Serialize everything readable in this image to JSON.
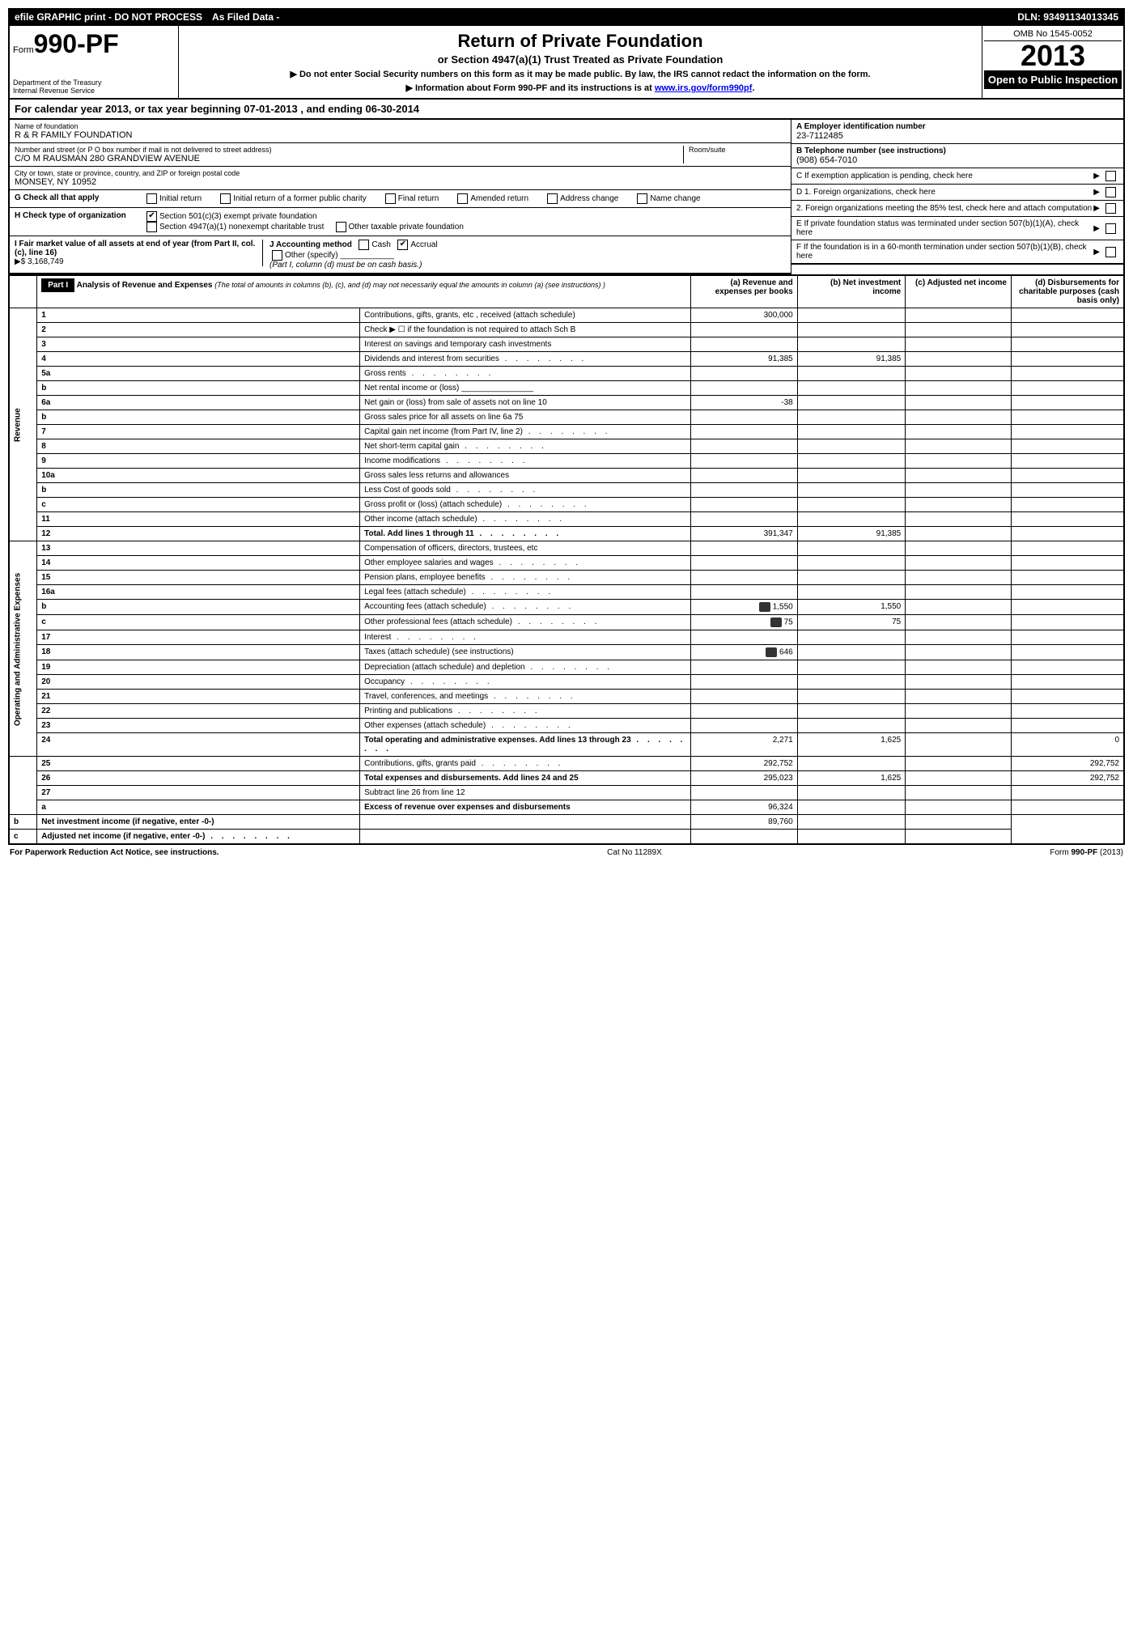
{
  "topbar": {
    "left": "efile GRAPHIC print - DO NOT PROCESS",
    "mid": "As Filed Data -",
    "dln_label": "DLN:",
    "dln": "93491134013345"
  },
  "header": {
    "form_prefix": "Form",
    "form_no": "990-PF",
    "dept1": "Department of the Treasury",
    "dept2": "Internal Revenue Service",
    "title": "Return of Private Foundation",
    "subtitle": "or Section 4947(a)(1) Trust Treated as Private Foundation",
    "instr1": "▶ Do not enter Social Security numbers on this form as it may be made public. By law, the IRS cannot redact the information on the form.",
    "instr2": "▶ Information about Form 990-PF and its instructions is at ",
    "instr2_link": "www.irs.gov/form990pf",
    "omb": "OMB No 1545-0052",
    "year": "2013",
    "open": "Open to Public Inspection"
  },
  "calendar": {
    "text_a": "For calendar year 2013, or tax year beginning ",
    "begin": "07-01-2013",
    "text_b": " , and ending ",
    "end": "06-30-2014"
  },
  "entity": {
    "name_label": "Name of foundation",
    "name": "R & R FAMILY FOUNDATION",
    "street_label": "Number and street (or P O box number if mail is not delivered to street address)",
    "room_label": "Room/suite",
    "street": "C/O M RAUSMAN 280 GRANDVIEW AVENUE",
    "city_label": "City or town, state or province, country, and ZIP or foreign postal code",
    "city": "MONSEY, NY 10952",
    "ein_label": "A Employer identification number",
    "ein": "23-7112485",
    "phone_label": "B Telephone number (see instructions)",
    "phone": "(908) 654-7010",
    "c_label": "C If exemption application is pending, check here"
  },
  "boxG": {
    "label": "G Check all that apply",
    "opts": [
      "Initial return",
      "Initial return of a former public charity",
      "Final return",
      "Amended return",
      "Address change",
      "Name change"
    ]
  },
  "boxH": {
    "label": "H Check type of organization",
    "opt1": "Section 501(c)(3) exempt private foundation",
    "opt2": "Section 4947(a)(1) nonexempt charitable trust",
    "opt3": "Other taxable private foundation",
    "opt1_checked": "✔"
  },
  "boxI": {
    "label": "I Fair market value of all assets at end of year (from Part II, col. (c), line 16)",
    "value": "▶$ 3,168,749"
  },
  "boxJ": {
    "label": "J Accounting method",
    "cash": "Cash",
    "accrual": "Accrual",
    "accrual_checked": "✔",
    "other": "Other (specify)",
    "note": "(Part I, column (d) must be on cash basis.)"
  },
  "boxD": {
    "d1": "D 1. Foreign organizations, check here",
    "d2": "2. Foreign organizations meeting the 85% test, check here and attach computation",
    "e": "E If private foundation status was terminated under section 507(b)(1)(A), check here",
    "f": "F If the foundation is in a 60-month termination under section 507(b)(1)(B), check here"
  },
  "part1": {
    "label": "Part I",
    "title": "Analysis of Revenue and Expenses",
    "title_note": "(The total of amounts in columns (b), (c), and (d) may not necessarily equal the amounts in column (a) (see instructions) )",
    "col_a": "(a) Revenue and expenses per books",
    "col_b": "(b) Net investment income",
    "col_c": "(c) Adjusted net income",
    "col_d": "(d) Disbursements for charitable purposes (cash basis only)"
  },
  "sections": {
    "revenue": "Revenue",
    "expenses": "Operating and Administrative Expenses"
  },
  "rows": [
    {
      "n": "1",
      "desc": "Contributions, gifts, grants, etc , received (attach schedule)",
      "a": "300,000"
    },
    {
      "n": "2",
      "desc": "Check ▶ ☐ if the foundation is not required to attach Sch B"
    },
    {
      "n": "3",
      "desc": "Interest on savings and temporary cash investments"
    },
    {
      "n": "4",
      "desc": "Dividends and interest from securities",
      "a": "91,385",
      "b": "91,385",
      "dots": true
    },
    {
      "n": "5a",
      "desc": "Gross rents",
      "dots": true
    },
    {
      "n": "b",
      "desc": "Net rental income or (loss) ________________"
    },
    {
      "n": "6a",
      "desc": "Net gain or (loss) from sale of assets not on line 10",
      "a": "-38"
    },
    {
      "n": "b",
      "desc": "Gross sales price for all assets on line 6a                75",
      "indent": true
    },
    {
      "n": "7",
      "desc": "Capital gain net income (from Part IV, line 2)",
      "dots": true
    },
    {
      "n": "8",
      "desc": "Net short-term capital gain",
      "dots": true
    },
    {
      "n": "9",
      "desc": "Income modifications",
      "dots": true
    },
    {
      "n": "10a",
      "desc": "Gross sales less returns and allowances"
    },
    {
      "n": "b",
      "desc": "Less Cost of goods sold",
      "dots": true
    },
    {
      "n": "c",
      "desc": "Gross profit or (loss) (attach schedule)",
      "dots": true
    },
    {
      "n": "11",
      "desc": "Other income (attach schedule)",
      "dots": true
    },
    {
      "n": "12",
      "desc": "Total. Add lines 1 through 11",
      "a": "391,347",
      "b": "91,385",
      "bold": true,
      "dots": true
    },
    {
      "n": "13",
      "desc": "Compensation of officers, directors, trustees, etc"
    },
    {
      "n": "14",
      "desc": "Other employee salaries and wages",
      "dots": true
    },
    {
      "n": "15",
      "desc": "Pension plans, employee benefits",
      "dots": true
    },
    {
      "n": "16a",
      "desc": "Legal fees (attach schedule)",
      "dots": true
    },
    {
      "n": "b",
      "desc": "Accounting fees (attach schedule)",
      "a": "1,550",
      "b": "1,550",
      "icon": true,
      "dots": true
    },
    {
      "n": "c",
      "desc": "Other professional fees (attach schedule)",
      "a": "75",
      "b": "75",
      "icon": true,
      "dots": true
    },
    {
      "n": "17",
      "desc": "Interest",
      "dots": true
    },
    {
      "n": "18",
      "desc": "Taxes (attach schedule) (see instructions)",
      "a": "646",
      "icon": true
    },
    {
      "n": "19",
      "desc": "Depreciation (attach schedule) and depletion",
      "dots": true
    },
    {
      "n": "20",
      "desc": "Occupancy",
      "dots": true
    },
    {
      "n": "21",
      "desc": "Travel, conferences, and meetings",
      "dots": true
    },
    {
      "n": "22",
      "desc": "Printing and publications",
      "dots": true
    },
    {
      "n": "23",
      "desc": "Other expenses (attach schedule)",
      "dots": true
    },
    {
      "n": "24",
      "desc": "Total operating and administrative expenses. Add lines 13 through 23",
      "a": "2,271",
      "b": "1,625",
      "d": "0",
      "bold": true,
      "dots": true
    },
    {
      "n": "25",
      "desc": "Contributions, gifts, grants paid",
      "a": "292,752",
      "d": "292,752",
      "dots": true
    },
    {
      "n": "26",
      "desc": "Total expenses and disbursements. Add lines 24 and 25",
      "a": "295,023",
      "b": "1,625",
      "d": "292,752",
      "bold": true
    },
    {
      "n": "27",
      "desc": "Subtract line 26 from line 12"
    },
    {
      "n": "a",
      "desc": "Excess of revenue over expenses and disbursements",
      "a": "96,324",
      "bold": true
    },
    {
      "n": "b",
      "desc": "Net investment income (if negative, enter -0-)",
      "b": "89,760",
      "bold": true
    },
    {
      "n": "c",
      "desc": "Adjusted net income (if negative, enter -0-)",
      "bold": true,
      "dots": true
    }
  ],
  "footer": {
    "left": "For Paperwork Reduction Act Notice, see instructions.",
    "mid": "Cat No 11289X",
    "right": "Form 990-PF (2013)"
  }
}
